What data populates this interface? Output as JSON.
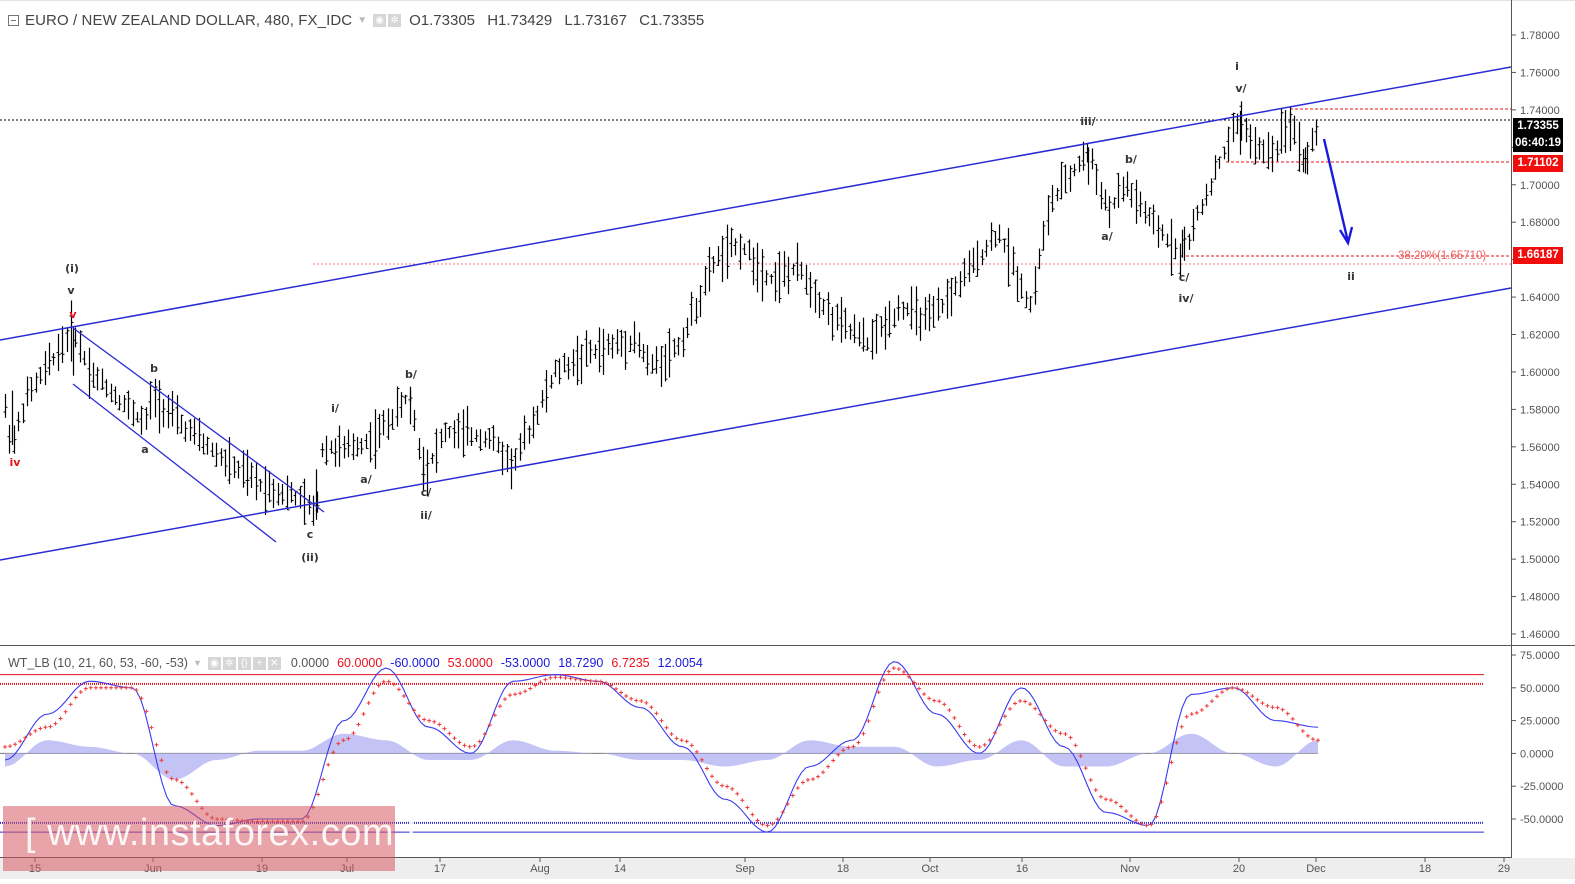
{
  "header": {
    "symbol_title": "EURO / NEW ZEALAND DOLLAR, 480, FX_IDC",
    "ohlc": {
      "open": "O1.73305",
      "high": "H1.73429",
      "low": "L1.73167",
      "close": "C1.73355"
    }
  },
  "indicator": {
    "name": "WT_LB (10, 21, 60, 53, -60, -53)",
    "values": [
      {
        "text": "0.0000",
        "color": "#555555"
      },
      {
        "text": "60.0000",
        "color": "#e8101a"
      },
      {
        "text": "-60.0000",
        "color": "#1a1adc"
      },
      {
        "text": "53.0000",
        "color": "#e8101a"
      },
      {
        "text": "-53.0000",
        "color": "#1a1adc"
      },
      {
        "text": "18.7290",
        "color": "#1a1adc"
      },
      {
        "text": "6.7235",
        "color": "#e8101a"
      },
      {
        "text": "12.0054",
        "color": "#1a1adc"
      }
    ]
  },
  "price_tags": {
    "resistance": "1.73945",
    "last": "1.73355",
    "countdown": "06:40:19",
    "support": "1.71102",
    "fib_level": "1.66187"
  },
  "fib_label": "38.20%(1.65710)",
  "watermark": "[ www.instaforex.com ]",
  "colors": {
    "bars": "#000000",
    "channel": "#2b2bd6",
    "red_levels": "#e8101a",
    "osc_line": "#3a3af0",
    "osc_signal": "#f03a3a",
    "osc_hist": "#b9b9f5"
  },
  "chart_data": [
    {
      "type": "bar",
      "title": "EURO / NEW ZEALAND DOLLAR, 480, FX_IDC",
      "subtype": "ohlc",
      "xlabel": "",
      "ylabel": "",
      "ylim": [
        1.45,
        1.79
      ],
      "y_ticks": [
        "1.78000",
        "1.76000",
        "1.74000",
        "1.72000",
        "1.70000",
        "1.68000",
        "1.66000",
        "1.64000",
        "1.62000",
        "1.60000",
        "1.58000",
        "1.56000",
        "1.54000",
        "1.52000",
        "1.50000",
        "1.48000",
        "1.46000"
      ],
      "x_ticks": [
        "15",
        "Jun",
        "19",
        "Jul",
        "17",
        "Aug",
        "14",
        "Sep",
        "18",
        "Oct",
        "16",
        "Nov",
        "20",
        "Dec",
        "18",
        "29"
      ],
      "x": [
        "May 15",
        "May 22",
        "May 29",
        "Jun 5",
        "Jun 12",
        "Jun 19",
        "Jun 26",
        "Jul 3",
        "Jul 10",
        "Jul 17",
        "Jul 24",
        "Jul 31",
        "Aug 7",
        "Aug 14",
        "Aug 21",
        "Aug 28",
        "Sep 4",
        "Sep 11",
        "Sep 18",
        "Sep 25",
        "Oct 2",
        "Oct 9",
        "Oct 16",
        "Oct 23",
        "Oct 30",
        "Nov 6",
        "Nov 13",
        "Nov 20",
        "Nov 27",
        "Nov 30"
      ],
      "close": [
        1.58,
        1.6,
        1.618,
        1.595,
        1.57,
        1.555,
        1.535,
        1.563,
        1.575,
        1.56,
        1.568,
        1.553,
        1.59,
        1.615,
        1.622,
        1.665,
        1.66,
        1.64,
        1.625,
        1.632,
        1.645,
        1.675,
        1.64,
        1.71,
        1.69,
        1.67,
        1.7,
        1.728,
        1.722,
        1.73355
      ],
      "high_extreme": 1.73945,
      "low_extreme": 1.521,
      "annotations": [
        {
          "text": "iv",
          "color": "red"
        },
        {
          "text": "(i)"
        },
        {
          "text": "v"
        },
        {
          "text": "v",
          "color": "red"
        },
        {
          "text": "b"
        },
        {
          "text": "a"
        },
        {
          "text": "c"
        },
        {
          "text": "(ii)"
        },
        {
          "text": "i/"
        },
        {
          "text": "a/"
        },
        {
          "text": "b/"
        },
        {
          "text": "c/"
        },
        {
          "text": "ii/"
        },
        {
          "text": "iii/"
        },
        {
          "text": "b/"
        },
        {
          "text": "a/"
        },
        {
          "text": "c/"
        },
        {
          "text": "iv/"
        },
        {
          "text": "i"
        },
        {
          "text": "v/"
        },
        {
          "text": "ii"
        },
        {
          "text": "38.20%(1.65710)",
          "color": "red"
        }
      ],
      "horizontal_levels": [
        1.73945,
        1.73355,
        1.71102,
        1.66187,
        1.6571
      ],
      "grid": false
    },
    {
      "type": "line",
      "title": "WT_LB (10, 21, 60, 53, -60, -53)",
      "ylim": [
        -62,
        78
      ],
      "y_ticks": [
        "75.0000",
        "50.0000",
        "25.0000",
        "0.0000",
        "-25.0000",
        "-50.0000"
      ],
      "levels": {
        "ob1": 60,
        "ob2": 53,
        "os1": -60,
        "os2": -53,
        "zero": 0
      },
      "series": [
        {
          "name": "WT1",
          "values": [
            -5,
            30,
            55,
            50,
            -40,
            -55,
            -50,
            -50,
            25,
            65,
            20,
            0,
            55,
            60,
            55,
            35,
            5,
            -35,
            -60,
            -10,
            10,
            70,
            30,
            0,
            50,
            5,
            -45,
            -55,
            45,
            50,
            25,
            20
          ]
        },
        {
          "name": "WT2",
          "values": [
            5,
            20,
            50,
            50,
            -20,
            -50,
            -52,
            -52,
            10,
            55,
            25,
            5,
            45,
            58,
            55,
            40,
            10,
            -25,
            -55,
            -20,
            5,
            65,
            40,
            5,
            40,
            15,
            -35,
            -55,
            30,
            50,
            35,
            10
          ]
        },
        {
          "name": "Diff",
          "values": [
            -10,
            10,
            5,
            0,
            -20,
            -5,
            2,
            2,
            15,
            10,
            -5,
            -5,
            10,
            2,
            0,
            -5,
            -5,
            -10,
            -5,
            10,
            5,
            5,
            -10,
            -5,
            10,
            -10,
            -10,
            0,
            15,
            0,
            -10,
            10
          ]
        }
      ],
      "current_values": {
        "wt1": 18.729,
        "wt2": 6.7235,
        "diff": 12.0054
      }
    }
  ]
}
